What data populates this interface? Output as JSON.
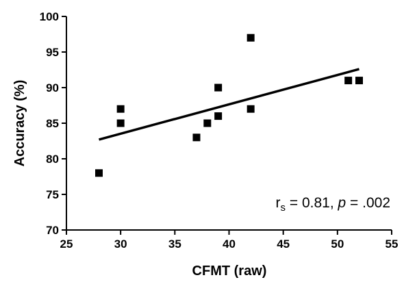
{
  "chart_data": {
    "type": "scatter",
    "xlabel": "CFMT (raw)",
    "ylabel": "Accuracy (%)",
    "xlim": [
      25,
      55
    ],
    "ylim": [
      70,
      100
    ],
    "x_ticks": [
      "25",
      "30",
      "35",
      "40",
      "45",
      "50",
      "55"
    ],
    "y_ticks": [
      "70",
      "75",
      "80",
      "85",
      "90",
      "95",
      "100"
    ],
    "points": [
      {
        "x": 28,
        "y": 78
      },
      {
        "x": 30,
        "y": 87
      },
      {
        "x": 30,
        "y": 85
      },
      {
        "x": 37,
        "y": 83
      },
      {
        "x": 38,
        "y": 85
      },
      {
        "x": 39,
        "y": 90
      },
      {
        "x": 39,
        "y": 86
      },
      {
        "x": 42,
        "y": 97
      },
      {
        "x": 42,
        "y": 87
      },
      {
        "x": 51,
        "y": 91
      },
      {
        "x": 52,
        "y": 91
      }
    ],
    "trendline": {
      "x": [
        28,
        52
      ],
      "y": [
        82.7,
        92.6
      ]
    },
    "annotation": {
      "r_main": "r",
      "r_sub": "s",
      "eq_text": " = 0.81, ",
      "p_label": "p",
      "p_text": " = .002"
    },
    "grid": false,
    "marker": "square",
    "color": "#000000"
  }
}
